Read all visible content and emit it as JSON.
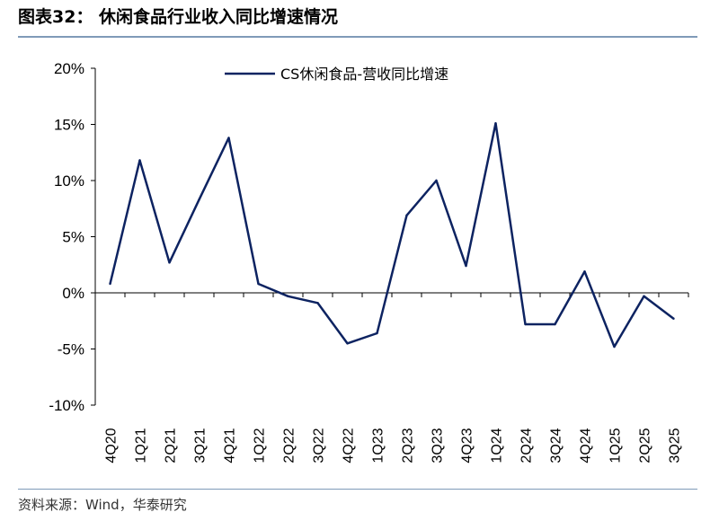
{
  "header": {
    "title": "图表32：  休闲食品行业收入同比增速情况"
  },
  "footer": {
    "source": "资料来源：Wind，华泰研究"
  },
  "colors": {
    "series": "#0d2361",
    "rule": "#7f9ab8"
  },
  "chart_data": {
    "type": "line",
    "title": "",
    "xlabel": "",
    "ylabel": "",
    "ylim": [
      -10,
      20
    ],
    "yticks": [
      20,
      15,
      10,
      5,
      0,
      -5,
      -10
    ],
    "ytick_labels": [
      "20%",
      "15%",
      "10%",
      "5%",
      "0%",
      "-5%",
      "-10%"
    ],
    "categories": [
      "4Q20",
      "1Q21",
      "2Q21",
      "3Q21",
      "4Q21",
      "1Q22",
      "2Q22",
      "3Q22",
      "4Q22",
      "1Q23",
      "2Q23",
      "3Q23",
      "4Q23",
      "1Q24",
      "2Q24",
      "3Q24",
      "4Q24",
      "1Q25",
      "2Q25",
      "3Q25"
    ],
    "series": [
      {
        "name": "CS休闲食品-营收同比增速",
        "values": [
          0.8,
          11.8,
          2.7,
          8.3,
          13.8,
          0.8,
          -0.3,
          -0.9,
          -4.5,
          -3.6,
          6.9,
          10.0,
          2.4,
          15.1,
          -2.8,
          -2.8,
          1.9,
          -4.8,
          -0.3,
          -2.3
        ]
      }
    ],
    "legend_position": "top-center",
    "grid": false
  }
}
